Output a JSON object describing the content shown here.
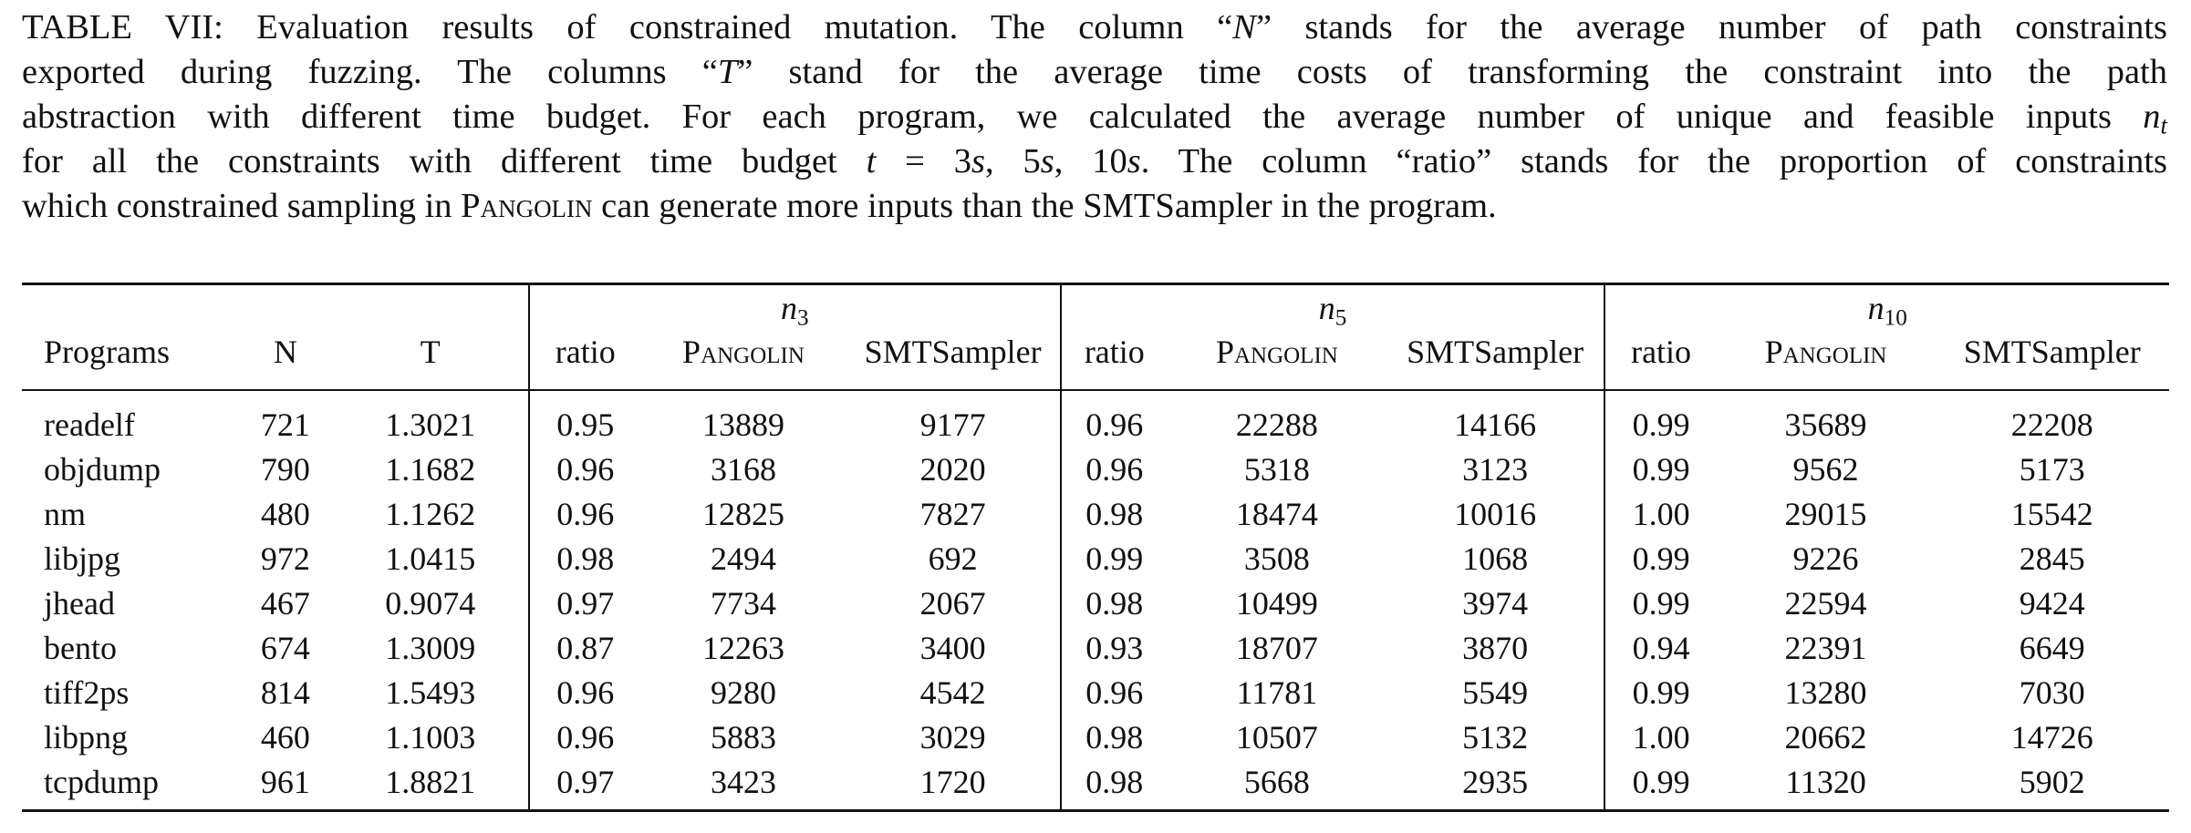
{
  "caption": {
    "lines": [
      [
        "TABLE VII: Evaluation results of constrained mutation. The column “",
        {
          "i": "N"
        },
        "” stands for the average number of path constraints"
      ],
      [
        "exported during fuzzing. The columns “",
        {
          "i": "T"
        },
        "” stand for the average time costs of transforming the constraint into the path"
      ],
      [
        "abstraction with different time budget. For each program, we calculated the average number of unique and feasible inputs ",
        {
          "i": "n",
          "sub": "t"
        }
      ],
      [
        "for all the constraints with different time budget ",
        {
          "i": "t"
        },
        " = 3",
        {
          "i": "s"
        },
        ", 5",
        {
          "i": "s"
        },
        ", 10",
        {
          "i": "s"
        },
        ". The column “ratio” stands for the proportion of constraints"
      ],
      [
        "which constrained sampling in ",
        {
          "sc": "Pangolin"
        },
        " can generate more inputs than the SMTSampler in the program."
      ]
    ]
  },
  "table": {
    "groups": [
      {
        "base": "n",
        "sub": "3"
      },
      {
        "base": "n",
        "sub": "5"
      },
      {
        "base": "n",
        "sub": "10"
      }
    ],
    "columns": [
      "Programs",
      "N",
      "T",
      "ratio",
      "Pangolin",
      "SMTSampler",
      "ratio",
      "Pangolin",
      "SMTSampler",
      "ratio",
      "Pangolin",
      "SMTSampler"
    ],
    "rows": [
      [
        "readelf",
        "721",
        "1.3021",
        "0.95",
        "13889",
        "9177",
        "0.96",
        "22288",
        "14166",
        "0.99",
        "35689",
        "22208"
      ],
      [
        "objdump",
        "790",
        "1.1682",
        "0.96",
        "3168",
        "2020",
        "0.96",
        "5318",
        "3123",
        "0.99",
        "9562",
        "5173"
      ],
      [
        "nm",
        "480",
        "1.1262",
        "0.96",
        "12825",
        "7827",
        "0.98",
        "18474",
        "10016",
        "1.00",
        "29015",
        "15542"
      ],
      [
        "libjpg",
        "972",
        "1.0415",
        "0.98",
        "2494",
        "692",
        "0.99",
        "3508",
        "1068",
        "0.99",
        "9226",
        "2845"
      ],
      [
        "jhead",
        "467",
        "0.9074",
        "0.97",
        "7734",
        "2067",
        "0.98",
        "10499",
        "3974",
        "0.99",
        "22594",
        "9424"
      ],
      [
        "bento",
        "674",
        "1.3009",
        "0.87",
        "12263",
        "3400",
        "0.93",
        "18707",
        "3870",
        "0.94",
        "22391",
        "6649"
      ],
      [
        "tiff2ps",
        "814",
        "1.5493",
        "0.96",
        "9280",
        "4542",
        "0.96",
        "11781",
        "5549",
        "0.99",
        "13280",
        "7030"
      ],
      [
        "libpng",
        "460",
        "1.1003",
        "0.96",
        "5883",
        "3029",
        "0.98",
        "10507",
        "5132",
        "1.00",
        "20662",
        "14726"
      ],
      [
        "tcpdump",
        "961",
        "1.8821",
        "0.97",
        "3423",
        "1720",
        "0.98",
        "5668",
        "2935",
        "0.99",
        "11320",
        "5902"
      ]
    ]
  }
}
